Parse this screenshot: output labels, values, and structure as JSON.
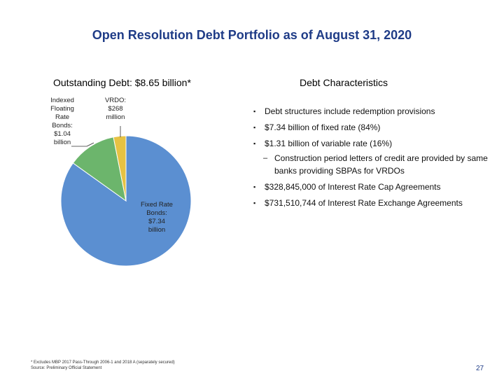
{
  "title": "Open Resolution Debt Portfolio as of August 31, 2020",
  "pie": {
    "heading": "Outstanding Debt: $8.65 billion*",
    "slices": [
      {
        "name": "Fixed Rate Bonds: $7.34 billion",
        "label_lines": [
          "Fixed Rate",
          "Bonds:",
          "$7.34",
          "billion"
        ],
        "value": 7.34,
        "color": "#5B8FD1"
      },
      {
        "name": "Indexed Floating Rate Bonds: $1.04 billion",
        "label_lines": [
          "Indexed",
          "Floating",
          "Rate",
          "Bonds:",
          "$1.04",
          "billion"
        ],
        "value": 1.04,
        "color": "#6CB56C"
      },
      {
        "name": "VRDO: $268 million",
        "label_lines": [
          "VRDO:",
          "$268",
          "million"
        ],
        "value": 0.268,
        "color": "#E6C243"
      }
    ]
  },
  "characteristics": {
    "heading": "Debt Characteristics",
    "bullet_glyph": "▪",
    "sub_glyph": "–",
    "items": [
      {
        "text": "Debt structures include redemption provisions"
      },
      {
        "text": "$7.34 billion of fixed rate (84%)"
      },
      {
        "text": "$1.31 billion of variable rate (16%)"
      },
      {
        "text": "Construction period letters of credit are provided by same banks providing SBPAs for VRDOs"
      },
      {
        "text": "$328,845,000 of Interest Rate Cap Agreements"
      },
      {
        "text": "$731,510,744 of Interest Rate Exchange Agreements"
      }
    ]
  },
  "footnote": {
    "line1": "* Excludes MBP 2017 Pass-Through 2006-1 and 2018 A (separately secured)",
    "line2": "Source: Preliminary Official Statement"
  },
  "page_number": "27"
}
